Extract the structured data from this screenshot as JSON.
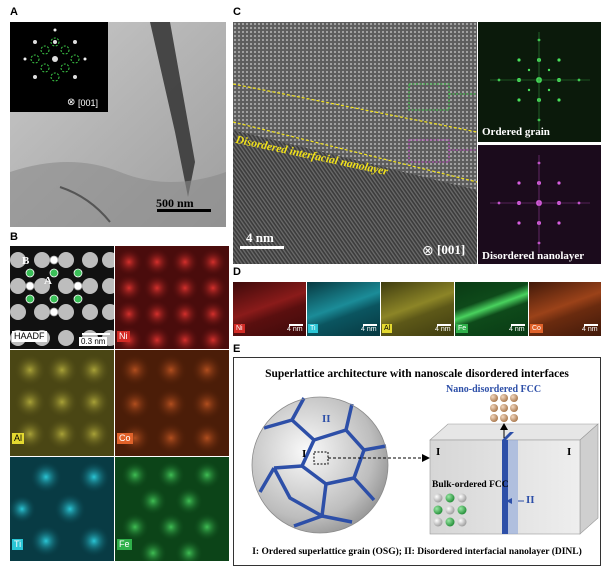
{
  "panels": {
    "a": {
      "label": "A",
      "scale_bar": "500 nm",
      "zone_axis": "[001]"
    },
    "b": {
      "label": "B",
      "site_b": "B",
      "site_a": "A",
      "tiles": [
        "HAADF",
        "Ni",
        "Al",
        "Co",
        "Ti",
        "Fe"
      ],
      "scale_bar": "0.3 nm"
    },
    "c": {
      "label": "C",
      "interface_text": "Disordered interfacial nanolayer",
      "scale_bar": "4 nm",
      "zone_axis": "[001]",
      "fft_top": "Ordered grain",
      "fft_bottom": "Disordered nanolayer"
    },
    "d": {
      "label": "D",
      "elements": [
        "Ni",
        "Ti",
        "Al",
        "Fe",
        "Co"
      ],
      "scale_bar": "4 nm"
    },
    "e": {
      "label": "E",
      "title": "Superlattice architecture with nanoscale disordered interfaces",
      "nano_fcc": "Nano-disordered FCC",
      "bulk_fcc": "Bulk-ordered FCC",
      "grain_i": "I",
      "grain_ii": "II",
      "block_i_left": "I",
      "block_i_right": "I",
      "block_ii": "II",
      "legend": "I: Ordered superlattice grain (OSG); II: Disordered interfacial nanolayer (DINL)"
    }
  },
  "colors": {
    "ni": "#c0201f",
    "al": "#b9b333",
    "co": "#c4521f",
    "ti": "#24b4c4",
    "fe": "#2fb04a",
    "interface_yellow": "#f2e21a",
    "boundary_blue": "#2d4fa8"
  }
}
